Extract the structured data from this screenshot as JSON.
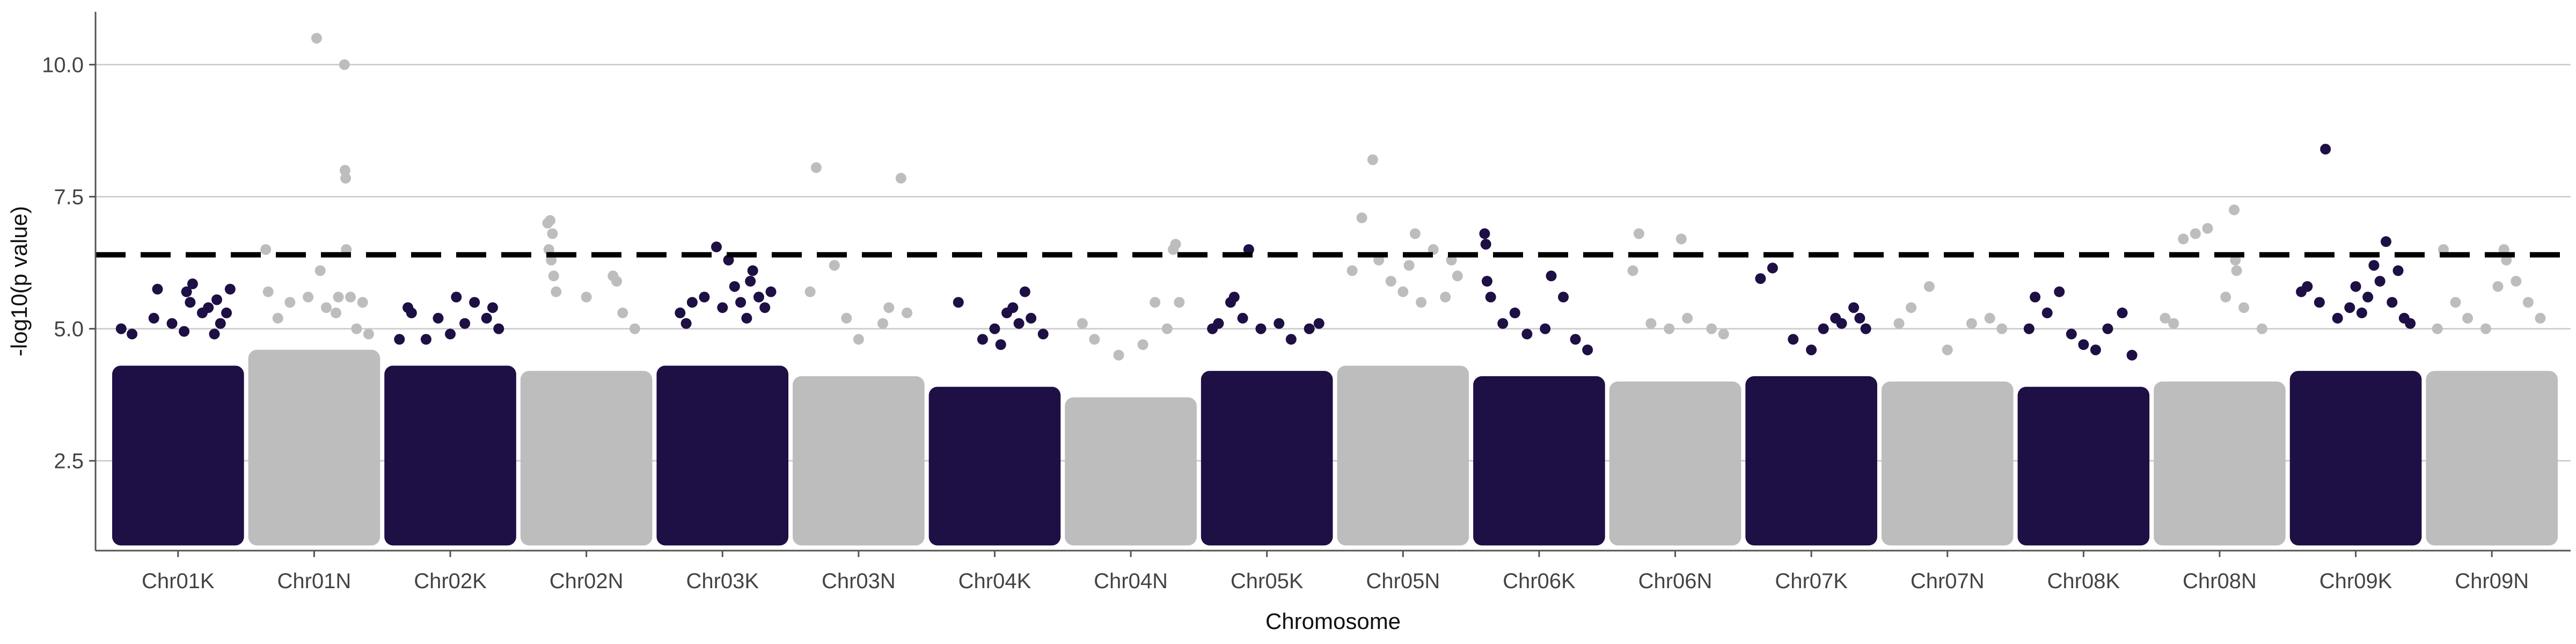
{
  "chart_data": {
    "type": "scatter",
    "subtype": "manhattan",
    "xlabel": "Chromosome",
    "ylabel": "-log10(p value)",
    "ylim": [
      0.8,
      11.0
    ],
    "y_ticks": [
      2.5,
      5.0,
      7.5,
      10.0
    ],
    "y_tick_labels": [
      "2.5",
      "5.0",
      "7.5",
      "10.0"
    ],
    "grid": "horizontal major",
    "legend": "none",
    "colors": {
      "odd": "#1e0f45",
      "even": "#bdbdbd",
      "threshold": "#000000"
    },
    "threshold": {
      "value": 6.4,
      "style": "dashed"
    },
    "categories": [
      "Chr01K",
      "Chr01N",
      "Chr02K",
      "Chr02N",
      "Chr03K",
      "Chr03N",
      "Chr04K",
      "Chr04N",
      "Chr05K",
      "Chr05N",
      "Chr06K",
      "Chr06N",
      "Chr07K",
      "Chr07N",
      "Chr08K",
      "Chr08N",
      "Chr09K",
      "Chr09N"
    ],
    "bulk": [
      {
        "chrom": "Chr01K",
        "min": 1.0,
        "top": 4.2
      },
      {
        "chrom": "Chr01N",
        "min": 1.0,
        "top": 4.5
      },
      {
        "chrom": "Chr02K",
        "min": 1.0,
        "top": 4.2
      },
      {
        "chrom": "Chr02N",
        "min": 1.0,
        "top": 4.1
      },
      {
        "chrom": "Chr03K",
        "min": 1.0,
        "top": 4.2
      },
      {
        "chrom": "Chr03N",
        "min": 1.0,
        "top": 4.0
      },
      {
        "chrom": "Chr04K",
        "min": 1.0,
        "top": 3.8
      },
      {
        "chrom": "Chr04N",
        "min": 1.0,
        "top": 3.6
      },
      {
        "chrom": "Chr05K",
        "min": 1.0,
        "top": 4.1
      },
      {
        "chrom": "Chr05N",
        "min": 1.0,
        "top": 4.2
      },
      {
        "chrom": "Chr06K",
        "min": 1.0,
        "top": 4.0
      },
      {
        "chrom": "Chr06N",
        "min": 1.0,
        "top": 3.9
      },
      {
        "chrom": "Chr07K",
        "min": 1.0,
        "top": 4.0
      },
      {
        "chrom": "Chr07N",
        "min": 1.0,
        "top": 3.9
      },
      {
        "chrom": "Chr08K",
        "min": 1.0,
        "top": 3.8
      },
      {
        "chrom": "Chr08N",
        "min": 1.0,
        "top": 3.9
      },
      {
        "chrom": "Chr09K",
        "min": 1.0,
        "top": 4.1
      },
      {
        "chrom": "Chr09N",
        "min": 1.0,
        "top": 4.1
      }
    ],
    "points": [
      {
        "chrom": "Chr01K",
        "pos": 0.03,
        "y": 5.0
      },
      {
        "chrom": "Chr01K",
        "pos": 0.12,
        "y": 4.9
      },
      {
        "chrom": "Chr01K",
        "pos": 0.3,
        "y": 5.2
      },
      {
        "chrom": "Chr01K",
        "pos": 0.33,
        "y": 5.75
      },
      {
        "chrom": "Chr01K",
        "pos": 0.45,
        "y": 5.1
      },
      {
        "chrom": "Chr01K",
        "pos": 0.55,
        "y": 4.95
      },
      {
        "chrom": "Chr01K",
        "pos": 0.57,
        "y": 5.7
      },
      {
        "chrom": "Chr01K",
        "pos": 0.6,
        "y": 5.5
      },
      {
        "chrom": "Chr01K",
        "pos": 0.62,
        "y": 5.85
      },
      {
        "chrom": "Chr01K",
        "pos": 0.7,
        "y": 5.3
      },
      {
        "chrom": "Chr01K",
        "pos": 0.75,
        "y": 5.4
      },
      {
        "chrom": "Chr01K",
        "pos": 0.8,
        "y": 4.9
      },
      {
        "chrom": "Chr01K",
        "pos": 0.82,
        "y": 5.55
      },
      {
        "chrom": "Chr01K",
        "pos": 0.85,
        "y": 5.1
      },
      {
        "chrom": "Chr01K",
        "pos": 0.9,
        "y": 5.3
      },
      {
        "chrom": "Chr01K",
        "pos": 0.93,
        "y": 5.75
      },
      {
        "chrom": "Chr01N",
        "pos": 0.1,
        "y": 6.5
      },
      {
        "chrom": "Chr01N",
        "pos": 0.12,
        "y": 5.7
      },
      {
        "chrom": "Chr01N",
        "pos": 0.2,
        "y": 5.2
      },
      {
        "chrom": "Chr01N",
        "pos": 0.3,
        "y": 5.5
      },
      {
        "chrom": "Chr01N",
        "pos": 0.45,
        "y": 5.6
      },
      {
        "chrom": "Chr01N",
        "pos": 0.52,
        "y": 10.5
      },
      {
        "chrom": "Chr01N",
        "pos": 0.55,
        "y": 6.1
      },
      {
        "chrom": "Chr01N",
        "pos": 0.6,
        "y": 5.4
      },
      {
        "chrom": "Chr01N",
        "pos": 0.68,
        "y": 5.3
      },
      {
        "chrom": "Chr01N",
        "pos": 0.7,
        "y": 5.6
      },
      {
        "chrom": "Chr01N",
        "pos": 0.75,
        "y": 10.0
      },
      {
        "chrom": "Chr01N",
        "pos": 0.755,
        "y": 8.0
      },
      {
        "chrom": "Chr01N",
        "pos": 0.76,
        "y": 7.85
      },
      {
        "chrom": "Chr01N",
        "pos": 0.765,
        "y": 6.5
      },
      {
        "chrom": "Chr01N",
        "pos": 0.8,
        "y": 5.6
      },
      {
        "chrom": "Chr01N",
        "pos": 0.85,
        "y": 5.0
      },
      {
        "chrom": "Chr01N",
        "pos": 0.9,
        "y": 5.5
      },
      {
        "chrom": "Chr01N",
        "pos": 0.95,
        "y": 4.9
      },
      {
        "chrom": "Chr02K",
        "pos": 0.08,
        "y": 4.8
      },
      {
        "chrom": "Chr02K",
        "pos": 0.15,
        "y": 5.4
      },
      {
        "chrom": "Chr02K",
        "pos": 0.18,
        "y": 5.3
      },
      {
        "chrom": "Chr02K",
        "pos": 0.3,
        "y": 4.8
      },
      {
        "chrom": "Chr02K",
        "pos": 0.4,
        "y": 5.2
      },
      {
        "chrom": "Chr02K",
        "pos": 0.5,
        "y": 4.9
      },
      {
        "chrom": "Chr02K",
        "pos": 0.55,
        "y": 5.6
      },
      {
        "chrom": "Chr02K",
        "pos": 0.62,
        "y": 5.1
      },
      {
        "chrom": "Chr02K",
        "pos": 0.7,
        "y": 5.5
      },
      {
        "chrom": "Chr02K",
        "pos": 0.8,
        "y": 5.2
      },
      {
        "chrom": "Chr02K",
        "pos": 0.85,
        "y": 5.4
      },
      {
        "chrom": "Chr02K",
        "pos": 0.9,
        "y": 5.0
      },
      {
        "chrom": "Chr02N",
        "pos": 0.18,
        "y": 7.0
      },
      {
        "chrom": "Chr02N",
        "pos": 0.2,
        "y": 7.05
      },
      {
        "chrom": "Chr02N",
        "pos": 0.22,
        "y": 6.8
      },
      {
        "chrom": "Chr02N",
        "pos": 0.19,
        "y": 6.5
      },
      {
        "chrom": "Chr02N",
        "pos": 0.21,
        "y": 6.3
      },
      {
        "chrom": "Chr02N",
        "pos": 0.23,
        "y": 6.0
      },
      {
        "chrom": "Chr02N",
        "pos": 0.25,
        "y": 5.7
      },
      {
        "chrom": "Chr02N",
        "pos": 0.5,
        "y": 5.6
      },
      {
        "chrom": "Chr02N",
        "pos": 0.72,
        "y": 6.0
      },
      {
        "chrom": "Chr02N",
        "pos": 0.75,
        "y": 5.9
      },
      {
        "chrom": "Chr02N",
        "pos": 0.8,
        "y": 5.3
      },
      {
        "chrom": "Chr02N",
        "pos": 0.9,
        "y": 5.0
      },
      {
        "chrom": "Chr03K",
        "pos": 0.15,
        "y": 5.3
      },
      {
        "chrom": "Chr03K",
        "pos": 0.2,
        "y": 5.1
      },
      {
        "chrom": "Chr03K",
        "pos": 0.25,
        "y": 5.5
      },
      {
        "chrom": "Chr03K",
        "pos": 0.35,
        "y": 5.6
      },
      {
        "chrom": "Chr03K",
        "pos": 0.45,
        "y": 6.55
      },
      {
        "chrom": "Chr03K",
        "pos": 0.5,
        "y": 5.4
      },
      {
        "chrom": "Chr03K",
        "pos": 0.55,
        "y": 6.3
      },
      {
        "chrom": "Chr03K",
        "pos": 0.6,
        "y": 5.8
      },
      {
        "chrom": "Chr03K",
        "pos": 0.65,
        "y": 5.5
      },
      {
        "chrom": "Chr03K",
        "pos": 0.7,
        "y": 5.2
      },
      {
        "chrom": "Chr03K",
        "pos": 0.73,
        "y": 5.9
      },
      {
        "chrom": "Chr03K",
        "pos": 0.75,
        "y": 6.1
      },
      {
        "chrom": "Chr03K",
        "pos": 0.8,
        "y": 5.6
      },
      {
        "chrom": "Chr03K",
        "pos": 0.85,
        "y": 5.4
      },
      {
        "chrom": "Chr03K",
        "pos": 0.9,
        "y": 5.7
      },
      {
        "chrom": "Chr03N",
        "pos": 0.1,
        "y": 5.7
      },
      {
        "chrom": "Chr03N",
        "pos": 0.15,
        "y": 8.05
      },
      {
        "chrom": "Chr03N",
        "pos": 0.3,
        "y": 6.2
      },
      {
        "chrom": "Chr03N",
        "pos": 0.4,
        "y": 5.2
      },
      {
        "chrom": "Chr03N",
        "pos": 0.5,
        "y": 4.8
      },
      {
        "chrom": "Chr03N",
        "pos": 0.7,
        "y": 5.1
      },
      {
        "chrom": "Chr03N",
        "pos": 0.75,
        "y": 5.4
      },
      {
        "chrom": "Chr03N",
        "pos": 0.85,
        "y": 7.85
      },
      {
        "chrom": "Chr03N",
        "pos": 0.9,
        "y": 5.3
      },
      {
        "chrom": "Chr04K",
        "pos": 0.2,
        "y": 5.5
      },
      {
        "chrom": "Chr04K",
        "pos": 0.4,
        "y": 4.8
      },
      {
        "chrom": "Chr04K",
        "pos": 0.5,
        "y": 5.0
      },
      {
        "chrom": "Chr04K",
        "pos": 0.55,
        "y": 4.7
      },
      {
        "chrom": "Chr04K",
        "pos": 0.6,
        "y": 5.3
      },
      {
        "chrom": "Chr04K",
        "pos": 0.65,
        "y": 5.4
      },
      {
        "chrom": "Chr04K",
        "pos": 0.7,
        "y": 5.1
      },
      {
        "chrom": "Chr04K",
        "pos": 0.75,
        "y": 5.7
      },
      {
        "chrom": "Chr04K",
        "pos": 0.8,
        "y": 5.2
      },
      {
        "chrom": "Chr04K",
        "pos": 0.9,
        "y": 4.9
      },
      {
        "chrom": "Chr04N",
        "pos": 0.1,
        "y": 5.1
      },
      {
        "chrom": "Chr04N",
        "pos": 0.2,
        "y": 4.8
      },
      {
        "chrom": "Chr04N",
        "pos": 0.4,
        "y": 4.5
      },
      {
        "chrom": "Chr04N",
        "pos": 0.6,
        "y": 4.7
      },
      {
        "chrom": "Chr04N",
        "pos": 0.7,
        "y": 5.5
      },
      {
        "chrom": "Chr04N",
        "pos": 0.8,
        "y": 5.0
      },
      {
        "chrom": "Chr04N",
        "pos": 0.85,
        "y": 6.5
      },
      {
        "chrom": "Chr04N",
        "pos": 0.87,
        "y": 6.6
      },
      {
        "chrom": "Chr04N",
        "pos": 0.9,
        "y": 5.5
      },
      {
        "chrom": "Chr05K",
        "pos": 0.05,
        "y": 5.0
      },
      {
        "chrom": "Chr05K",
        "pos": 0.1,
        "y": 5.1
      },
      {
        "chrom": "Chr05K",
        "pos": 0.2,
        "y": 5.5
      },
      {
        "chrom": "Chr05K",
        "pos": 0.23,
        "y": 5.6
      },
      {
        "chrom": "Chr05K",
        "pos": 0.3,
        "y": 5.2
      },
      {
        "chrom": "Chr05K",
        "pos": 0.35,
        "y": 6.5
      },
      {
        "chrom": "Chr05K",
        "pos": 0.45,
        "y": 5.0
      },
      {
        "chrom": "Chr05K",
        "pos": 0.6,
        "y": 5.1
      },
      {
        "chrom": "Chr05K",
        "pos": 0.7,
        "y": 4.8
      },
      {
        "chrom": "Chr05K",
        "pos": 0.85,
        "y": 5.0
      },
      {
        "chrom": "Chr05K",
        "pos": 0.93,
        "y": 5.1
      },
      {
        "chrom": "Chr05N",
        "pos": 0.08,
        "y": 6.1
      },
      {
        "chrom": "Chr05N",
        "pos": 0.16,
        "y": 7.1
      },
      {
        "chrom": "Chr05N",
        "pos": 0.25,
        "y": 8.2
      },
      {
        "chrom": "Chr05N",
        "pos": 0.3,
        "y": 6.3
      },
      {
        "chrom": "Chr05N",
        "pos": 0.4,
        "y": 5.9
      },
      {
        "chrom": "Chr05N",
        "pos": 0.5,
        "y": 5.7
      },
      {
        "chrom": "Chr05N",
        "pos": 0.55,
        "y": 6.2
      },
      {
        "chrom": "Chr05N",
        "pos": 0.6,
        "y": 6.8
      },
      {
        "chrom": "Chr05N",
        "pos": 0.65,
        "y": 5.5
      },
      {
        "chrom": "Chr05N",
        "pos": 0.75,
        "y": 6.5
      },
      {
        "chrom": "Chr05N",
        "pos": 0.85,
        "y": 5.6
      },
      {
        "chrom": "Chr05N",
        "pos": 0.9,
        "y": 6.3
      },
      {
        "chrom": "Chr05N",
        "pos": 0.95,
        "y": 6.0
      },
      {
        "chrom": "Chr06K",
        "pos": 0.05,
        "y": 6.8
      },
      {
        "chrom": "Chr06K",
        "pos": 0.06,
        "y": 6.6
      },
      {
        "chrom": "Chr06K",
        "pos": 0.07,
        "y": 5.9
      },
      {
        "chrom": "Chr06K",
        "pos": 0.1,
        "y": 5.6
      },
      {
        "chrom": "Chr06K",
        "pos": 0.2,
        "y": 5.1
      },
      {
        "chrom": "Chr06K",
        "pos": 0.3,
        "y": 5.3
      },
      {
        "chrom": "Chr06K",
        "pos": 0.4,
        "y": 4.9
      },
      {
        "chrom": "Chr06K",
        "pos": 0.55,
        "y": 5.0
      },
      {
        "chrom": "Chr06K",
        "pos": 0.6,
        "y": 6.0
      },
      {
        "chrom": "Chr06K",
        "pos": 0.7,
        "y": 5.6
      },
      {
        "chrom": "Chr06K",
        "pos": 0.8,
        "y": 4.8
      },
      {
        "chrom": "Chr06K",
        "pos": 0.9,
        "y": 4.6
      },
      {
        "chrom": "Chr06N",
        "pos": 0.15,
        "y": 6.1
      },
      {
        "chrom": "Chr06N",
        "pos": 0.2,
        "y": 6.8
      },
      {
        "chrom": "Chr06N",
        "pos": 0.3,
        "y": 5.1
      },
      {
        "chrom": "Chr06N",
        "pos": 0.45,
        "y": 5.0
      },
      {
        "chrom": "Chr06N",
        "pos": 0.55,
        "y": 6.7
      },
      {
        "chrom": "Chr06N",
        "pos": 0.6,
        "y": 5.2
      },
      {
        "chrom": "Chr06N",
        "pos": 0.8,
        "y": 5.0
      },
      {
        "chrom": "Chr06N",
        "pos": 0.9,
        "y": 4.9
      },
      {
        "chrom": "Chr07K",
        "pos": 0.08,
        "y": 5.95
      },
      {
        "chrom": "Chr07K",
        "pos": 0.18,
        "y": 6.15
      },
      {
        "chrom": "Chr07K",
        "pos": 0.35,
        "y": 4.8
      },
      {
        "chrom": "Chr07K",
        "pos": 0.5,
        "y": 4.6
      },
      {
        "chrom": "Chr07K",
        "pos": 0.6,
        "y": 5.0
      },
      {
        "chrom": "Chr07K",
        "pos": 0.7,
        "y": 5.2
      },
      {
        "chrom": "Chr07K",
        "pos": 0.75,
        "y": 5.1
      },
      {
        "chrom": "Chr07K",
        "pos": 0.85,
        "y": 5.4
      },
      {
        "chrom": "Chr07K",
        "pos": 0.9,
        "y": 5.2
      },
      {
        "chrom": "Chr07K",
        "pos": 0.95,
        "y": 5.0
      },
      {
        "chrom": "Chr07N",
        "pos": 0.1,
        "y": 5.1
      },
      {
        "chrom": "Chr07N",
        "pos": 0.2,
        "y": 5.4
      },
      {
        "chrom": "Chr07N",
        "pos": 0.35,
        "y": 5.8
      },
      {
        "chrom": "Chr07N",
        "pos": 0.5,
        "y": 4.6
      },
      {
        "chrom": "Chr07N",
        "pos": 0.7,
        "y": 5.1
      },
      {
        "chrom": "Chr07N",
        "pos": 0.85,
        "y": 5.2
      },
      {
        "chrom": "Chr07N",
        "pos": 0.95,
        "y": 5.0
      },
      {
        "chrom": "Chr08K",
        "pos": 0.05,
        "y": 5.0
      },
      {
        "chrom": "Chr08K",
        "pos": 0.1,
        "y": 5.6
      },
      {
        "chrom": "Chr08K",
        "pos": 0.2,
        "y": 5.3
      },
      {
        "chrom": "Chr08K",
        "pos": 0.3,
        "y": 5.7
      },
      {
        "chrom": "Chr08K",
        "pos": 0.4,
        "y": 4.9
      },
      {
        "chrom": "Chr08K",
        "pos": 0.5,
        "y": 4.7
      },
      {
        "chrom": "Chr08K",
        "pos": 0.6,
        "y": 4.6
      },
      {
        "chrom": "Chr08K",
        "pos": 0.7,
        "y": 5.0
      },
      {
        "chrom": "Chr08K",
        "pos": 0.82,
        "y": 5.3
      },
      {
        "chrom": "Chr08K",
        "pos": 0.9,
        "y": 4.5
      },
      {
        "chrom": "Chr08N",
        "pos": 0.05,
        "y": 5.2
      },
      {
        "chrom": "Chr08N",
        "pos": 0.12,
        "y": 5.1
      },
      {
        "chrom": "Chr08N",
        "pos": 0.2,
        "y": 6.7
      },
      {
        "chrom": "Chr08N",
        "pos": 0.3,
        "y": 6.8
      },
      {
        "chrom": "Chr08N",
        "pos": 0.4,
        "y": 6.9
      },
      {
        "chrom": "Chr08N",
        "pos": 0.55,
        "y": 5.6
      },
      {
        "chrom": "Chr08N",
        "pos": 0.62,
        "y": 7.25
      },
      {
        "chrom": "Chr08N",
        "pos": 0.63,
        "y": 6.3
      },
      {
        "chrom": "Chr08N",
        "pos": 0.64,
        "y": 6.1
      },
      {
        "chrom": "Chr08N",
        "pos": 0.7,
        "y": 5.4
      },
      {
        "chrom": "Chr08N",
        "pos": 0.85,
        "y": 5.0
      },
      {
        "chrom": "Chr09K",
        "pos": 0.05,
        "y": 5.7
      },
      {
        "chrom": "Chr09K",
        "pos": 0.1,
        "y": 5.8
      },
      {
        "chrom": "Chr09K",
        "pos": 0.2,
        "y": 5.5
      },
      {
        "chrom": "Chr09K",
        "pos": 0.25,
        "y": 8.4
      },
      {
        "chrom": "Chr09K",
        "pos": 0.35,
        "y": 5.2
      },
      {
        "chrom": "Chr09K",
        "pos": 0.45,
        "y": 5.4
      },
      {
        "chrom": "Chr09K",
        "pos": 0.5,
        "y": 5.8
      },
      {
        "chrom": "Chr09K",
        "pos": 0.55,
        "y": 5.3
      },
      {
        "chrom": "Chr09K",
        "pos": 0.6,
        "y": 5.6
      },
      {
        "chrom": "Chr09K",
        "pos": 0.65,
        "y": 6.2
      },
      {
        "chrom": "Chr09K",
        "pos": 0.7,
        "y": 5.9
      },
      {
        "chrom": "Chr09K",
        "pos": 0.75,
        "y": 6.65
      },
      {
        "chrom": "Chr09K",
        "pos": 0.8,
        "y": 5.5
      },
      {
        "chrom": "Chr09K",
        "pos": 0.85,
        "y": 6.1
      },
      {
        "chrom": "Chr09K",
        "pos": 0.9,
        "y": 5.2
      },
      {
        "chrom": "Chr09K",
        "pos": 0.95,
        "y": 5.1
      },
      {
        "chrom": "Chr09N",
        "pos": 0.05,
        "y": 5.0
      },
      {
        "chrom": "Chr09N",
        "pos": 0.1,
        "y": 6.5
      },
      {
        "chrom": "Chr09N",
        "pos": 0.2,
        "y": 5.5
      },
      {
        "chrom": "Chr09N",
        "pos": 0.3,
        "y": 5.2
      },
      {
        "chrom": "Chr09N",
        "pos": 0.45,
        "y": 5.0
      },
      {
        "chrom": "Chr09N",
        "pos": 0.55,
        "y": 5.8
      },
      {
        "chrom": "Chr09N",
        "pos": 0.6,
        "y": 6.5
      },
      {
        "chrom": "Chr09N",
        "pos": 0.62,
        "y": 6.3
      },
      {
        "chrom": "Chr09N",
        "pos": 0.7,
        "y": 5.9
      },
      {
        "chrom": "Chr09N",
        "pos": 0.8,
        "y": 5.5
      },
      {
        "chrom": "Chr09N",
        "pos": 0.9,
        "y": 5.2
      }
    ]
  }
}
